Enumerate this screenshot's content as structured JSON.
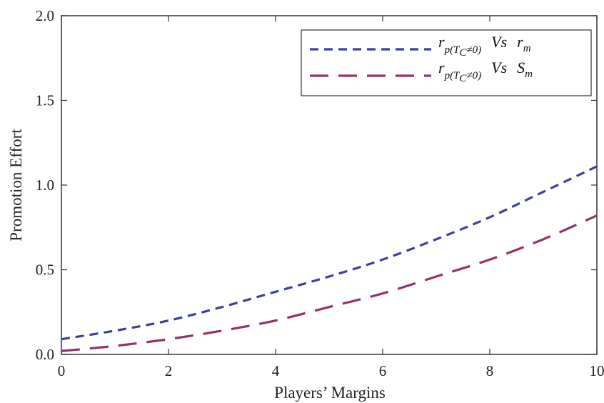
{
  "chart_data": {
    "type": "line",
    "title": "",
    "xlabel": "Players’ Margins",
    "ylabel": "Promotion Effort",
    "xlim": [
      0,
      10
    ],
    "ylim": [
      0,
      2.0
    ],
    "x_ticks": [
      "0",
      "2",
      "4",
      "6",
      "8",
      "10"
    ],
    "y_ticks": [
      "0.0",
      "0.5",
      "1.0",
      "1.5",
      "2.0"
    ],
    "grid": false,
    "legend_position": "top-right",
    "series": [
      {
        "name": "r_p(T_C≠0) Vs r_m",
        "legend_main": "r",
        "legend_sub": "p(T",
        "legend_subsub": "C",
        "legend_sub_end": "≠0)",
        "legend_vs": "Vs",
        "legend_var": "r",
        "legend_var_sub": "m",
        "color": "#3b3f9e",
        "dash": "short",
        "x": [
          0,
          1,
          2,
          3,
          4,
          5,
          6,
          7,
          8,
          9,
          10
        ],
        "y": [
          0.09,
          0.14,
          0.2,
          0.28,
          0.37,
          0.46,
          0.56,
          0.68,
          0.81,
          0.96,
          1.11
        ]
      },
      {
        "name": "r_p(T_C≠0) Vs S_m",
        "legend_main": "r",
        "legend_sub": "p(T",
        "legend_subsub": "C",
        "legend_sub_end": "≠0)",
        "legend_vs": "Vs",
        "legend_var": "S",
        "legend_var_sub": "m",
        "color": "#94306b",
        "dash": "long",
        "x": [
          0,
          1,
          2,
          3,
          4,
          5,
          6,
          7,
          8,
          9,
          10
        ],
        "y": [
          0.02,
          0.05,
          0.09,
          0.14,
          0.2,
          0.28,
          0.36,
          0.46,
          0.56,
          0.68,
          0.82
        ]
      }
    ]
  }
}
